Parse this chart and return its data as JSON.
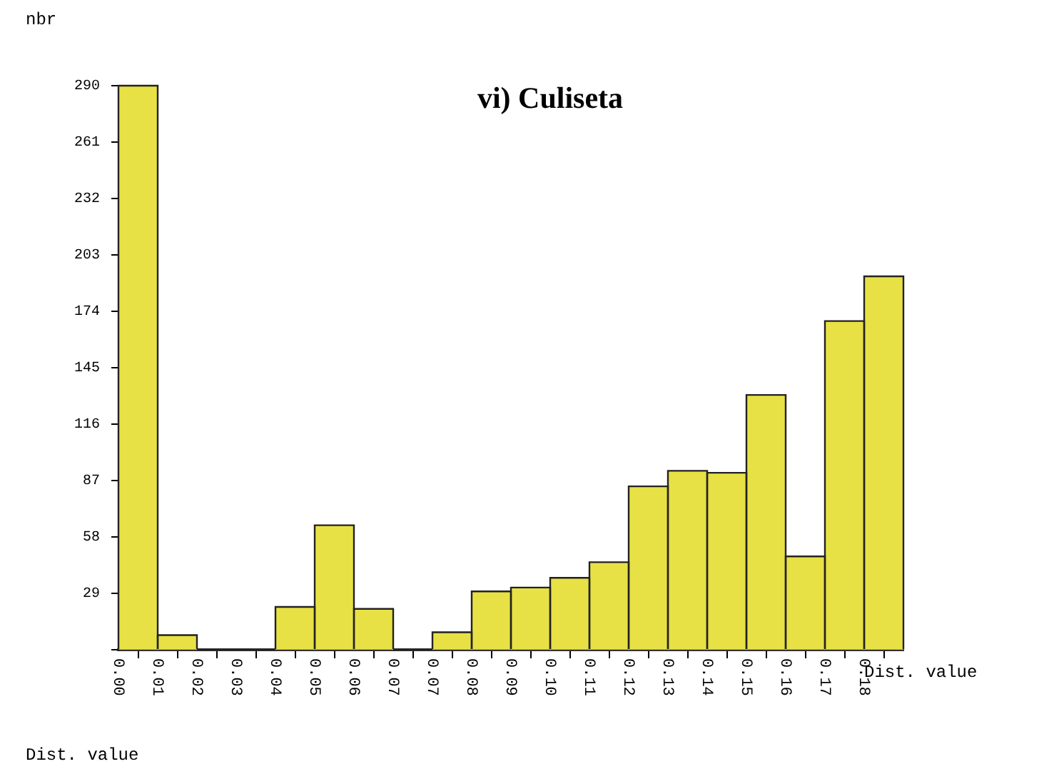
{
  "chart_data": {
    "type": "histogram",
    "title": "vi) Culiseta",
    "xlabel": "Dist. value",
    "ylabel": "nbr",
    "annotations": [
      "Dist. value"
    ],
    "bins": [
      0,
      0.0093,
      0.0186,
      0.0279,
      0.0372,
      0.0465,
      0.0558,
      0.0651,
      0.0744,
      0.0837,
      0.093,
      0.1023,
      0.1116,
      0.1209,
      0.1302,
      0.1395,
      0.1488,
      0.1581,
      0.1674,
      0.1767,
      0.186
    ],
    "values": [
      290,
      7.5,
      0,
      0,
      22,
      64,
      21,
      0,
      9,
      30,
      32,
      37,
      45,
      84,
      92,
      91,
      131,
      48,
      169,
      192
    ],
    "color": "#e8e145",
    "xlim": [
      0,
      0.186
    ],
    "xticks": [
      {
        "value": 0,
        "label": "0.00"
      },
      {
        "value": 0.0093,
        "label": "0.01"
      },
      {
        "value": 0.0186,
        "label": "0.02"
      },
      {
        "value": 0.0279,
        "label": "0.03"
      },
      {
        "value": 0.0372,
        "label": "0.04"
      },
      {
        "value": 0.0465,
        "label": "0.05"
      },
      {
        "value": 0.0558,
        "label": "0.06"
      },
      {
        "value": 0.0651,
        "label": "0.07"
      },
      {
        "value": 0.0744,
        "label": "0.07"
      },
      {
        "value": 0.0837,
        "label": "0.08"
      },
      {
        "value": 0.093,
        "label": "0.09"
      },
      {
        "value": 0.1023,
        "label": "0.10"
      },
      {
        "value": 0.1116,
        "label": "0.11"
      },
      {
        "value": 0.1209,
        "label": "0.12"
      },
      {
        "value": 0.1302,
        "label": "0.13"
      },
      {
        "value": 0.1395,
        "label": "0.14"
      },
      {
        "value": 0.1488,
        "label": "0.15"
      },
      {
        "value": 0.1581,
        "label": "0.16"
      },
      {
        "value": 0.1674,
        "label": "0.17"
      },
      {
        "value": 0.1767,
        "label": "0.18"
      }
    ],
    "ylim": [
      0,
      290
    ],
    "yticks": [
      {
        "value": 0,
        "label": null
      },
      29,
      58,
      87,
      116,
      145,
      174,
      203,
      232,
      261,
      290
    ],
    "grid": false,
    "legend": false
  }
}
